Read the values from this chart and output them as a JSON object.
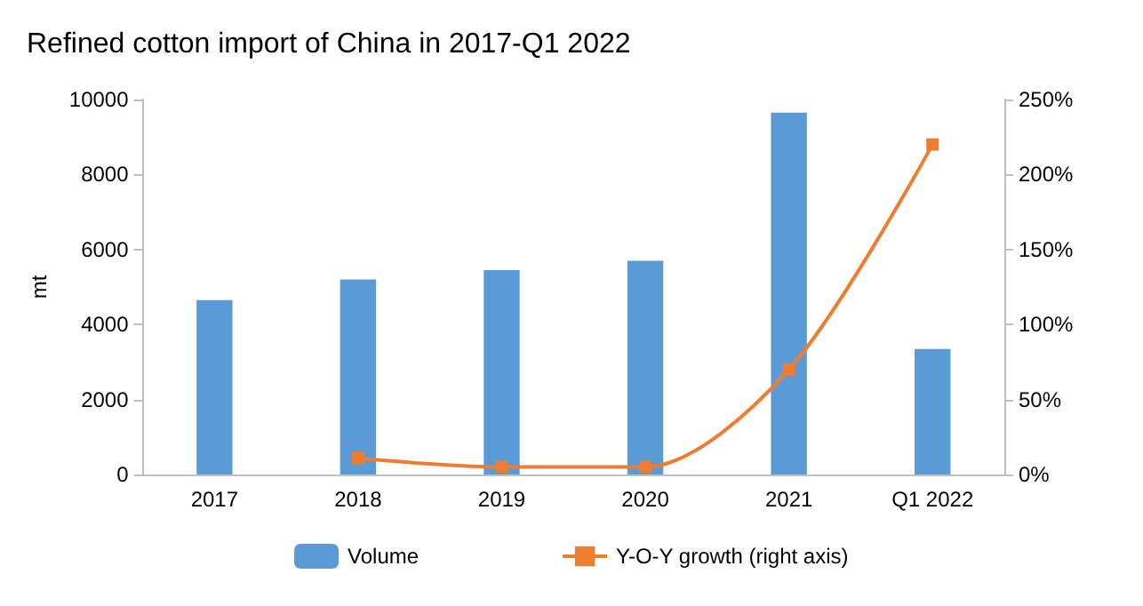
{
  "chart_data": {
    "type": "bar",
    "title": "Refined cotton import of China in 2017-Q1 2022",
    "ylabel": "mt",
    "categories": [
      "2017",
      "2018",
      "2019",
      "2020",
      "2021",
      "Q1 2022"
    ],
    "series": [
      {
        "name": "Volume",
        "color": "#5b9bd5",
        "values": [
          4650,
          5200,
          5450,
          5700,
          9650,
          3350
        ]
      },
      {
        "name": "Y-O-Y growth (right axis)",
        "type": "line",
        "axis": "y2",
        "color": "#ed7d31",
        "values": [
          null,
          11,
          5,
          5,
          70,
          220
        ]
      }
    ],
    "ylim": [
      0,
      10000
    ],
    "yticks": [
      0,
      2000,
      4000,
      6000,
      8000,
      10000
    ],
    "y2lim": [
      0,
      250
    ],
    "y2ticks": [
      {
        "value": 0,
        "label": "0%"
      },
      {
        "value": 50,
        "label": "50%"
      },
      {
        "value": 100,
        "label": "100%"
      },
      {
        "value": 150,
        "label": "150%"
      },
      {
        "value": 200,
        "label": "200%"
      },
      {
        "value": 250,
        "label": "250%"
      }
    ],
    "legend": "bottom",
    "marker": "square",
    "line_style": "solid",
    "grid": false
  }
}
